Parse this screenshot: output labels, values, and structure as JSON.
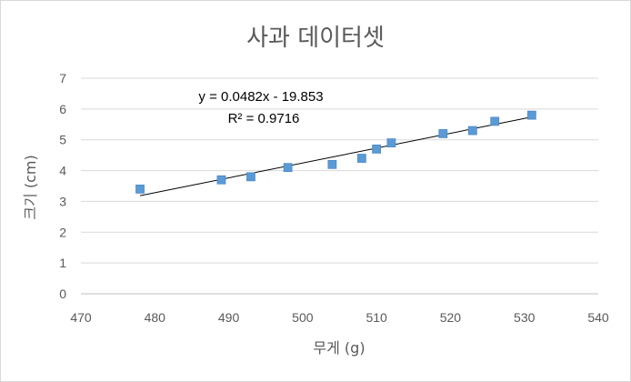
{
  "chart_data": {
    "type": "scatter",
    "title": "사과 데이터셋",
    "xlabel": "무게 (g)",
    "ylabel": "크기 (cm)",
    "xlim": [
      470,
      540
    ],
    "ylim": [
      0,
      7
    ],
    "x_ticks": [
      "470",
      "480",
      "490",
      "500",
      "510",
      "520",
      "530",
      "540"
    ],
    "y_ticks": [
      "0",
      "1",
      "2",
      "3",
      "4",
      "5",
      "6",
      "7"
    ],
    "grid": "horizontal",
    "legend": "none",
    "series": [
      {
        "marker": "square",
        "color": "#5b9bd5",
        "points": [
          {
            "x": 478,
            "y": 3.4
          },
          {
            "x": 489,
            "y": 3.7
          },
          {
            "x": 493,
            "y": 3.8
          },
          {
            "x": 498,
            "y": 4.1
          },
          {
            "x": 504,
            "y": 4.2
          },
          {
            "x": 508,
            "y": 4.4
          },
          {
            "x": 510,
            "y": 4.7
          },
          {
            "x": 512,
            "y": 4.9
          },
          {
            "x": 519,
            "y": 5.2
          },
          {
            "x": 523,
            "y": 5.3
          },
          {
            "x": 526,
            "y": 5.6
          },
          {
            "x": 531,
            "y": 5.8
          }
        ]
      }
    ],
    "trendline": {
      "type": "linear",
      "slope": 0.0482,
      "intercept": -19.853,
      "x_range": [
        478,
        531
      ],
      "color": "#000000",
      "equation_label": "y = 0.0482x - 19.853",
      "r2_label": "R² = 0.9716"
    }
  }
}
